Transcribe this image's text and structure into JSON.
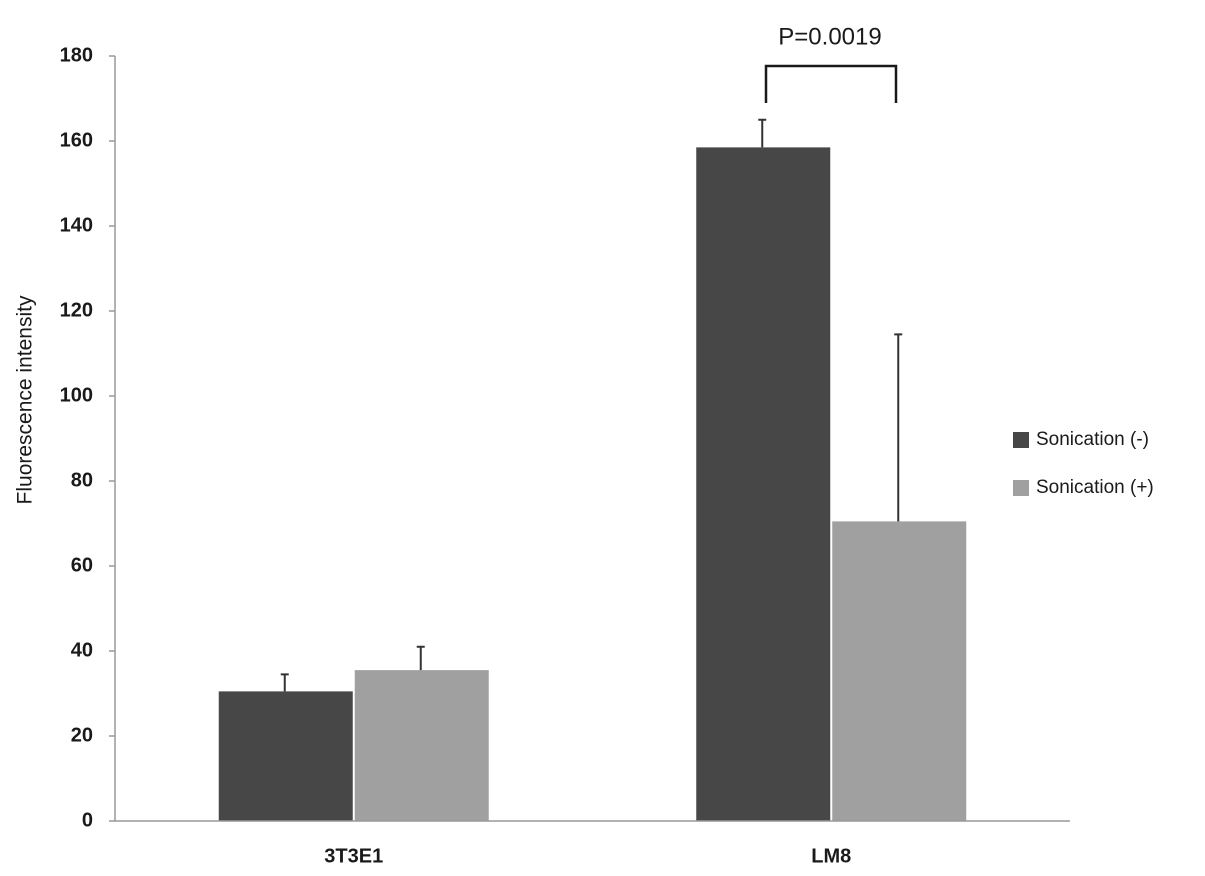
{
  "chart_data": {
    "type": "bar",
    "y_label": "Fluorescence intensity",
    "annotation": "P=0.0019",
    "categories": [
      "3T3E1",
      "LM8"
    ],
    "series": [
      {
        "name": "Sonication (-)",
        "color": "#474747",
        "values": [
          30.5,
          158.5
        ],
        "errors": [
          4,
          6.5
        ]
      },
      {
        "name": "Sonication (+)",
        "color": "#a0a0a0",
        "values": [
          35.5,
          70.5
        ],
        "errors": [
          5.5,
          44
        ]
      }
    ],
    "ylim": [
      0,
      180
    ],
    "yticks": [
      0,
      20,
      40,
      60,
      80,
      100,
      120,
      140,
      160,
      180
    ],
    "grid": false,
    "legend": "right"
  }
}
